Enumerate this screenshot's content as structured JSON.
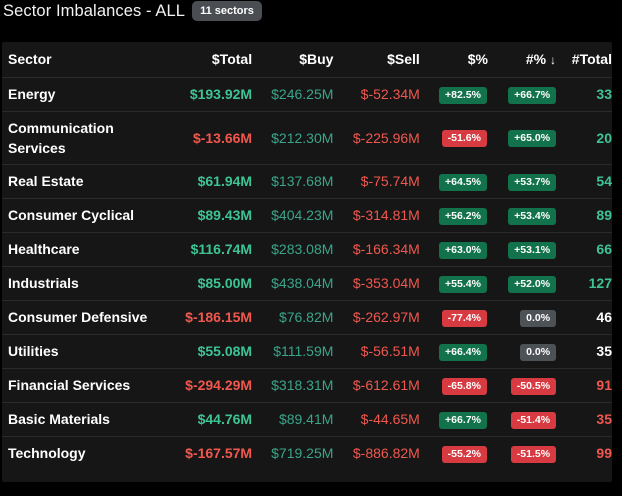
{
  "header": {
    "title": "Sector Imbalances - ALL",
    "badge": "11 sectors"
  },
  "table": {
    "columns": {
      "sector": "Sector",
      "total": "$Total",
      "buy": "$Buy",
      "sell": "$Sell",
      "pct": "$%",
      "hpct": "#%",
      "htotal": "#Total"
    },
    "rows": [
      {
        "sector": "Energy",
        "total": "$193.92M",
        "buy": "$246.25M",
        "sell": "$-52.34M",
        "pct": "+82.5%",
        "hpct": "+66.7%",
        "htotal": "33"
      },
      {
        "sector": "Communication Services",
        "total": "$-13.66M",
        "buy": "$212.30M",
        "sell": "$-225.96M",
        "pct": "-51.6%",
        "hpct": "+65.0%",
        "htotal": "20"
      },
      {
        "sector": "Real Estate",
        "total": "$61.94M",
        "buy": "$137.68M",
        "sell": "$-75.74M",
        "pct": "+64.5%",
        "hpct": "+53.7%",
        "htotal": "54"
      },
      {
        "sector": "Consumer Cyclical",
        "total": "$89.43M",
        "buy": "$404.23M",
        "sell": "$-314.81M",
        "pct": "+56.2%",
        "hpct": "+53.4%",
        "htotal": "89"
      },
      {
        "sector": "Healthcare",
        "total": "$116.74M",
        "buy": "$283.08M",
        "sell": "$-166.34M",
        "pct": "+63.0%",
        "hpct": "+53.1%",
        "htotal": "66"
      },
      {
        "sector": "Industrials",
        "total": "$85.00M",
        "buy": "$438.04M",
        "sell": "$-353.04M",
        "pct": "+55.4%",
        "hpct": "+52.0%",
        "htotal": "127"
      },
      {
        "sector": "Consumer Defensive",
        "total": "$-186.15M",
        "buy": "$76.82M",
        "sell": "$-262.97M",
        "pct": "-77.4%",
        "hpct": "0.0%",
        "htotal": "46"
      },
      {
        "sector": "Utilities",
        "total": "$55.08M",
        "buy": "$111.59M",
        "sell": "$-56.51M",
        "pct": "+66.4%",
        "hpct": "0.0%",
        "htotal": "35"
      },
      {
        "sector": "Financial Services",
        "total": "$-294.29M",
        "buy": "$318.31M",
        "sell": "$-612.61M",
        "pct": "-65.8%",
        "hpct": "-50.5%",
        "htotal": "91"
      },
      {
        "sector": "Basic Materials",
        "total": "$44.76M",
        "buy": "$89.41M",
        "sell": "$-44.65M",
        "pct": "+66.7%",
        "hpct": "-51.4%",
        "htotal": "35"
      },
      {
        "sector": "Technology",
        "total": "$-167.57M",
        "buy": "$719.25M",
        "sell": "$-886.82M",
        "pct": "-55.2%",
        "hpct": "-51.5%",
        "htotal": "99"
      }
    ]
  },
  "colors": {
    "positive": "#3ec494",
    "negative": "#f0584f",
    "pill_green": "#11724b",
    "pill_red": "#d83a41",
    "pill_neutral": "#4d5257",
    "panel_bg": "#161616"
  }
}
